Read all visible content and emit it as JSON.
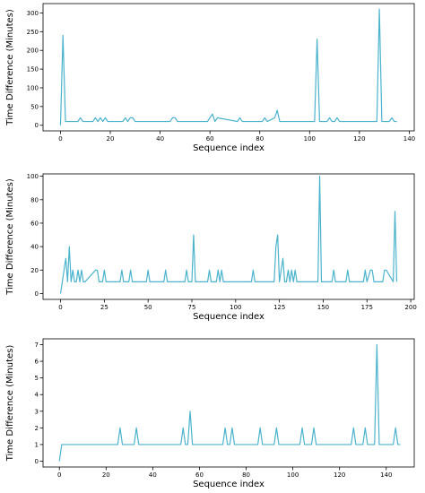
{
  "colors": {
    "series": "#4bb3cd"
  },
  "chart_data": [
    {
      "type": "line",
      "xlabel": "Sequence index",
      "ylabel": "Time Difference (Minutes)",
      "xlim": [
        -7,
        142
      ],
      "ylim": [
        -15,
        325
      ],
      "xticks": [
        0,
        20,
        40,
        60,
        80,
        100,
        120,
        140
      ],
      "yticks": [
        0,
        50,
        100,
        150,
        200,
        250,
        300
      ],
      "series": [
        {
          "x": [
            0,
            1,
            2,
            7,
            8,
            9,
            13,
            14,
            15,
            16,
            17,
            18,
            19,
            25,
            26,
            27,
            28,
            29,
            30,
            44,
            45,
            46,
            47,
            59,
            60,
            61,
            62,
            63,
            71,
            72,
            73,
            81,
            82,
            83,
            86,
            87,
            88,
            102,
            103,
            104,
            107,
            108,
            109,
            110,
            111,
            112,
            127,
            128,
            129,
            132,
            133,
            134,
            135
          ],
          "y": [
            0,
            240,
            10,
            10,
            20,
            10,
            10,
            20,
            10,
            20,
            10,
            20,
            10,
            10,
            20,
            10,
            20,
            20,
            10,
            10,
            20,
            20,
            10,
            10,
            20,
            30,
            10,
            20,
            10,
            20,
            10,
            10,
            20,
            10,
            20,
            40,
            10,
            10,
            230,
            10,
            10,
            20,
            10,
            10,
            20,
            10,
            10,
            310,
            10,
            10,
            20,
            10,
            10
          ]
        }
      ]
    },
    {
      "type": "line",
      "xlabel": "Sequence index",
      "ylabel": "Time Difference (Minutes)",
      "xlim": [
        -10,
        202
      ],
      "ylim": [
        -5,
        102
      ],
      "xticks": [
        0,
        25,
        50,
        75,
        100,
        125,
        150,
        175,
        200
      ],
      "yticks": [
        0,
        20,
        40,
        60,
        80,
        100
      ],
      "series": [
        {
          "x": [
            0,
            2,
            3,
            4,
            5,
            6,
            7,
            8,
            9,
            10,
            11,
            12,
            13,
            14,
            20,
            21,
            22,
            24,
            25,
            26,
            34,
            35,
            36,
            39,
            40,
            41,
            49,
            50,
            51,
            59,
            60,
            61,
            71,
            72,
            73,
            75,
            76,
            77,
            84,
            85,
            86,
            89,
            90,
            91,
            92,
            93,
            94,
            109,
            110,
            111,
            122,
            123,
            124,
            125,
            126,
            127,
            128,
            129,
            130,
            131,
            132,
            133,
            134,
            135,
            136,
            147,
            148,
            149,
            155,
            156,
            157,
            163,
            164,
            165,
            173,
            174,
            175,
            177,
            178,
            179,
            184,
            185,
            186,
            190,
            191,
            192
          ],
          "y": [
            0,
            20,
            30,
            10,
            40,
            10,
            20,
            10,
            10,
            20,
            10,
            20,
            10,
            10,
            20,
            20,
            10,
            10,
            20,
            10,
            10,
            20,
            10,
            10,
            20,
            10,
            10,
            20,
            10,
            10,
            20,
            10,
            10,
            20,
            10,
            10,
            50,
            10,
            10,
            20,
            10,
            10,
            20,
            10,
            20,
            10,
            10,
            10,
            20,
            10,
            10,
            40,
            50,
            10,
            20,
            30,
            10,
            10,
            20,
            10,
            20,
            10,
            20,
            10,
            10,
            10,
            100,
            10,
            10,
            20,
            10,
            10,
            20,
            10,
            10,
            20,
            10,
            20,
            20,
            10,
            10,
            20,
            20,
            10,
            70,
            10
          ]
        }
      ]
    },
    {
      "type": "line",
      "xlabel": "Sequence index",
      "ylabel": "Time Difference (Minutes)",
      "xlim": [
        -7,
        152
      ],
      "ylim": [
        -0.35,
        7.35
      ],
      "xticks": [
        0,
        20,
        40,
        60,
        80,
        100,
        120,
        140
      ],
      "yticks": [
        0,
        1,
        2,
        3,
        4,
        5,
        6,
        7
      ],
      "series": [
        {
          "x": [
            0,
            1,
            25,
            26,
            27,
            32,
            33,
            34,
            52,
            53,
            54,
            55,
            56,
            57,
            70,
            71,
            72,
            73,
            74,
            75,
            85,
            86,
            87,
            92,
            93,
            94,
            103,
            104,
            105,
            108,
            109,
            110,
            125,
            126,
            127,
            130,
            131,
            132,
            135,
            136,
            137,
            143,
            144,
            145,
            146
          ],
          "y": [
            0,
            1,
            1,
            2,
            1,
            1,
            2,
            1,
            1,
            2,
            1,
            1,
            3,
            1,
            1,
            2,
            1,
            1,
            2,
            1,
            1,
            2,
            1,
            1,
            2,
            1,
            1,
            2,
            1,
            1,
            2,
            1,
            1,
            2,
            1,
            1,
            2,
            1,
            1,
            7,
            1,
            1,
            2,
            1,
            1
          ]
        }
      ]
    }
  ]
}
